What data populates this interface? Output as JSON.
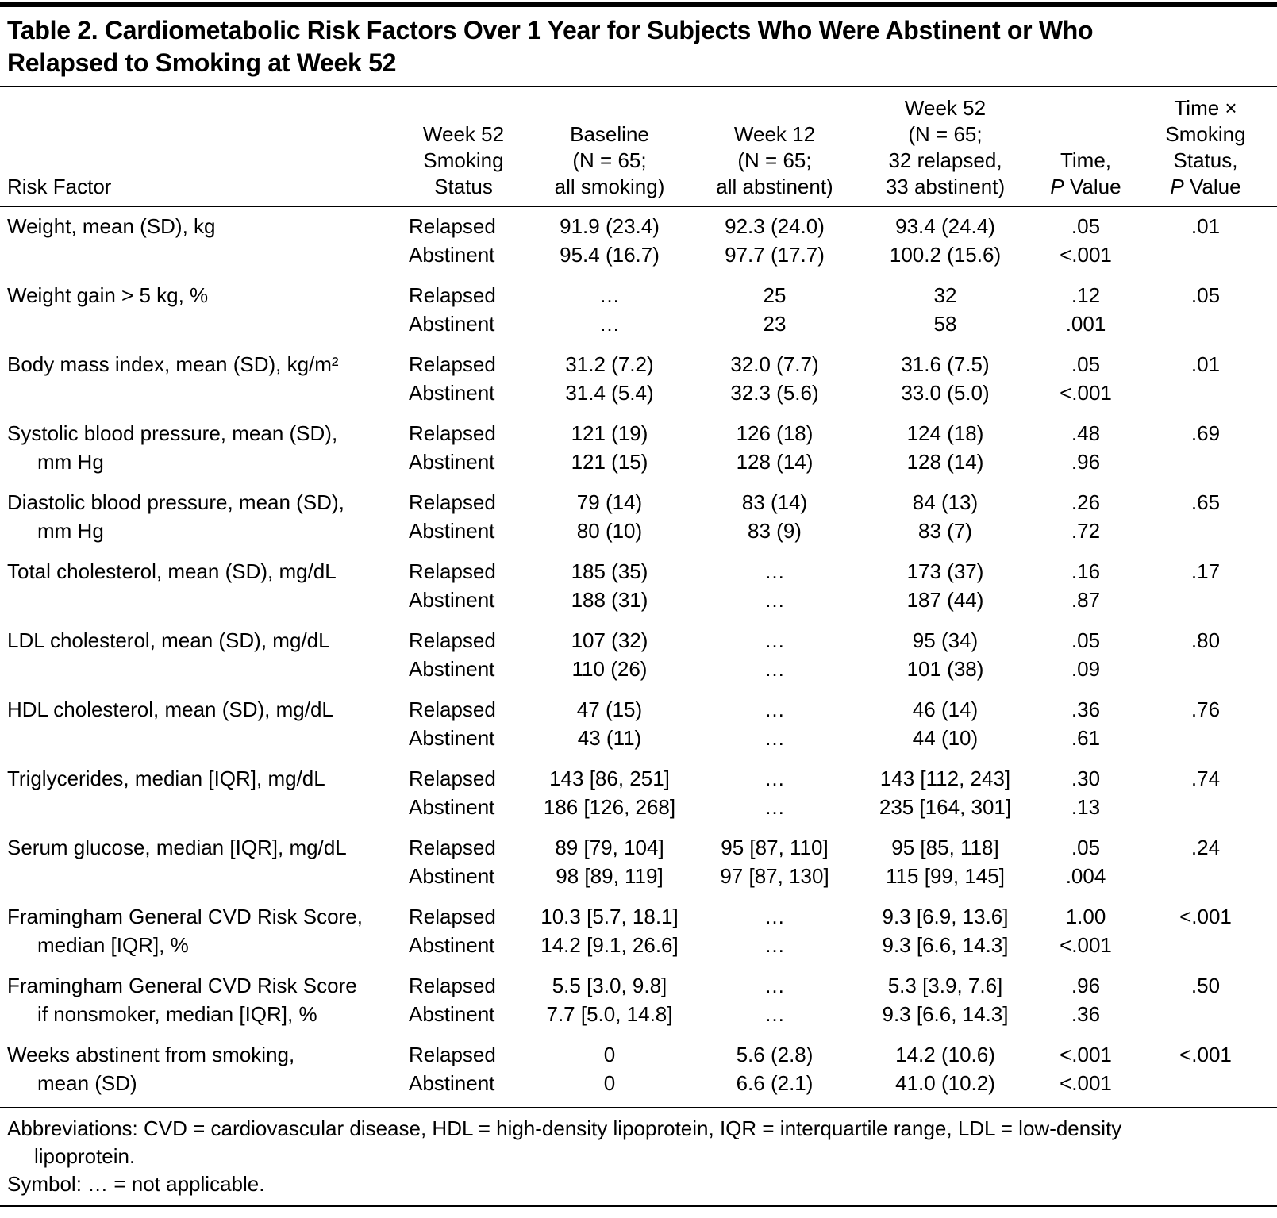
{
  "title_line1": "Table 2. Cardiometabolic Risk Factors Over 1 Year for Subjects Who Were Abstinent or Who",
  "title_line2": "Relapsed to Smoking at Week 52",
  "table": {
    "headers": {
      "risk_factor": "Risk Factor",
      "smoking_status": [
        "Week 52",
        "Smoking",
        "Status"
      ],
      "baseline": [
        "Baseline",
        "(N = 65;",
        "all smoking)"
      ],
      "week12": [
        "Week 12",
        "(N = 65;",
        "all abstinent)"
      ],
      "week52": [
        "Week 52",
        "(N = 65;",
        "32 relapsed,",
        "33 abstinent)"
      ],
      "time": [
        "Time,"
      ],
      "interaction": [
        "Time ×",
        "Smoking",
        "Status,"
      ],
      "p_label": "P",
      "value_label": "Value"
    },
    "groups": [
      {
        "label": [
          "Weight, mean (SD), kg"
        ],
        "rows": [
          {
            "status": "Relapsed",
            "baseline": "91.9 (23.4)",
            "week12": "92.3 (24.0)",
            "week52": "93.4 (24.4)",
            "time_p": ".05",
            "interaction_p": ".01"
          },
          {
            "status": "Abstinent",
            "baseline": "95.4 (16.7)",
            "week12": "97.7 (17.7)",
            "week52": "100.2 (15.6)",
            "time_p": "<.001",
            "interaction_p": ""
          }
        ]
      },
      {
        "label": [
          "Weight gain > 5 kg, %"
        ],
        "rows": [
          {
            "status": "Relapsed",
            "baseline": "…",
            "week12": "25",
            "week52": "32",
            "time_p": ".12",
            "interaction_p": ".05"
          },
          {
            "status": "Abstinent",
            "baseline": "…",
            "week12": "23",
            "week52": "58",
            "time_p": ".001",
            "interaction_p": ""
          }
        ]
      },
      {
        "label": [
          "Body mass index, mean (SD), kg/m²"
        ],
        "rows": [
          {
            "status": "Relapsed",
            "baseline": "31.2 (7.2)",
            "week12": "32.0 (7.7)",
            "week52": "31.6 (7.5)",
            "time_p": ".05",
            "interaction_p": ".01"
          },
          {
            "status": "Abstinent",
            "baseline": "31.4 (5.4)",
            "week12": "32.3 (5.6)",
            "week52": "33.0 (5.0)",
            "time_p": "<.001",
            "interaction_p": ""
          }
        ]
      },
      {
        "label": [
          "Systolic blood pressure, mean (SD),",
          "mm Hg"
        ],
        "rows": [
          {
            "status": "Relapsed",
            "baseline": "121 (19)",
            "week12": "126 (18)",
            "week52": "124 (18)",
            "time_p": ".48",
            "interaction_p": ".69"
          },
          {
            "status": "Abstinent",
            "baseline": "121 (15)",
            "week12": "128 (14)",
            "week52": "128 (14)",
            "time_p": ".96",
            "interaction_p": ""
          }
        ]
      },
      {
        "label": [
          "Diastolic blood pressure, mean (SD),",
          "mm Hg"
        ],
        "rows": [
          {
            "status": "Relapsed",
            "baseline": "79 (14)",
            "week12": "83 (14)",
            "week52": "84 (13)",
            "time_p": ".26",
            "interaction_p": ".65"
          },
          {
            "status": "Abstinent",
            "baseline": "80 (10)",
            "week12": "83 (9)",
            "week52": "83 (7)",
            "time_p": ".72",
            "interaction_p": ""
          }
        ]
      },
      {
        "label": [
          "Total cholesterol, mean (SD), mg/dL"
        ],
        "rows": [
          {
            "status": "Relapsed",
            "baseline": "185 (35)",
            "week12": "…",
            "week52": "173 (37)",
            "time_p": ".16",
            "interaction_p": ".17"
          },
          {
            "status": "Abstinent",
            "baseline": "188 (31)",
            "week12": "…",
            "week52": "187 (44)",
            "time_p": ".87",
            "interaction_p": ""
          }
        ]
      },
      {
        "label": [
          "LDL cholesterol, mean (SD), mg/dL"
        ],
        "rows": [
          {
            "status": "Relapsed",
            "baseline": "107 (32)",
            "week12": "…",
            "week52": "95 (34)",
            "time_p": ".05",
            "interaction_p": ".80"
          },
          {
            "status": "Abstinent",
            "baseline": "110 (26)",
            "week12": "…",
            "week52": "101 (38)",
            "time_p": ".09",
            "interaction_p": ""
          }
        ]
      },
      {
        "label": [
          "HDL cholesterol, mean (SD), mg/dL"
        ],
        "rows": [
          {
            "status": "Relapsed",
            "baseline": "47 (15)",
            "week12": "…",
            "week52": "46 (14)",
            "time_p": ".36",
            "interaction_p": ".76"
          },
          {
            "status": "Abstinent",
            "baseline": "43 (11)",
            "week12": "…",
            "week52": "44 (10)",
            "time_p": ".61",
            "interaction_p": ""
          }
        ]
      },
      {
        "label": [
          "Triglycerides, median [IQR], mg/dL"
        ],
        "rows": [
          {
            "status": "Relapsed",
            "baseline": "143 [86, 251]",
            "week12": "…",
            "week52": "143 [112, 243]",
            "time_p": ".30",
            "interaction_p": ".74"
          },
          {
            "status": "Abstinent",
            "baseline": "186 [126, 268]",
            "week12": "…",
            "week52": "235 [164, 301]",
            "time_p": ".13",
            "interaction_p": ""
          }
        ]
      },
      {
        "label": [
          "Serum glucose, median [IQR], mg/dL"
        ],
        "rows": [
          {
            "status": "Relapsed",
            "baseline": "89 [79, 104]",
            "week12": "95 [87, 110]",
            "week52": "95 [85, 118]",
            "time_p": ".05",
            "interaction_p": ".24"
          },
          {
            "status": "Abstinent",
            "baseline": "98 [89, 119]",
            "week12": "97 [87, 130]",
            "week52": "115 [99, 145]",
            "time_p": ".004",
            "interaction_p": ""
          }
        ]
      },
      {
        "label": [
          "Framingham General CVD Risk Score,",
          "median [IQR], %"
        ],
        "rows": [
          {
            "status": "Relapsed",
            "baseline": "10.3 [5.7, 18.1]",
            "week12": "…",
            "week52": "9.3 [6.9, 13.6]",
            "time_p": "1.00",
            "interaction_p": "<.001"
          },
          {
            "status": "Abstinent",
            "baseline": "14.2 [9.1, 26.6]",
            "week12": "…",
            "week52": "9.3 [6.6, 14.3]",
            "time_p": "<.001",
            "interaction_p": ""
          }
        ]
      },
      {
        "label": [
          "Framingham General CVD Risk Score",
          "if nonsmoker, median [IQR], %"
        ],
        "rows": [
          {
            "status": "Relapsed",
            "baseline": "5.5 [3.0, 9.8]",
            "week12": "…",
            "week52": "5.3 [3.9, 7.6]",
            "time_p": ".96",
            "interaction_p": ".50"
          },
          {
            "status": "Abstinent",
            "baseline": "7.7 [5.0, 14.8]",
            "week12": "…",
            "week52": "9.3 [6.6, 14.3]",
            "time_p": ".36",
            "interaction_p": ""
          }
        ]
      },
      {
        "label": [
          "Weeks abstinent from smoking,",
          "mean (SD)"
        ],
        "rows": [
          {
            "status": "Relapsed",
            "baseline": "0",
            "week12": "5.6 (2.8)",
            "week52": "14.2 (10.6)",
            "time_p": "<.001",
            "interaction_p": "<.001"
          },
          {
            "status": "Abstinent",
            "baseline": "0",
            "week12": "6.6 (2.1)",
            "week52": "41.0 (10.2)",
            "time_p": "<.001",
            "interaction_p": ""
          }
        ]
      }
    ]
  },
  "footnotes": {
    "abbreviations_line1": "Abbreviations: CVD = cardiovascular disease, HDL = high-density lipoprotein, IQR = interquartile range, LDL = low-density",
    "abbreviations_line2": "lipoprotein.",
    "symbol": "Symbol: … = not applicable."
  }
}
